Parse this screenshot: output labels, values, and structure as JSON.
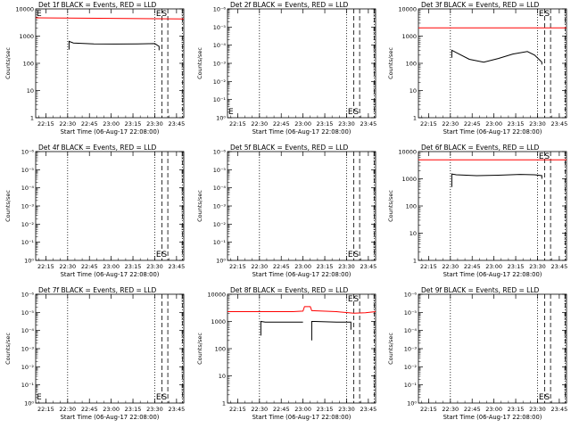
{
  "page": {
    "background": "#ffffff",
    "axis_color": "#000000",
    "events_color": "#000000",
    "lld_color": "#ff0000"
  },
  "chart_data": [
    {
      "type": "line",
      "title": "Det 1f BLACK = Events, RED = LLD",
      "xlabel": "Start Time (06-Aug-17 22:08:00)",
      "ylabel": "Counts/sec",
      "scale": "log",
      "yticks": [
        "1",
        "10",
        "100",
        "1000",
        "10000"
      ],
      "ylim": [
        1,
        10000
      ],
      "xticks": [
        "22:15",
        "22:30",
        "22:45",
        "23:00",
        "23:15",
        "23:30",
        "23:45"
      ],
      "xlim_minutes": [
        0,
        102
      ],
      "markers": {
        "E": 87,
        "S": 91
      },
      "edge_E": true,
      "lld": {
        "x": [
          0,
          102
        ],
        "y": [
          4700,
          4300
        ]
      },
      "events": [
        {
          "x": [
            23,
            23,
            26,
            40,
            55,
            70,
            82,
            85,
            85
          ],
          "y": [
            320,
            640,
            560,
            520,
            510,
            520,
            530,
            420,
            300
          ]
        }
      ]
    },
    {
      "type": "line",
      "title": "Det 2f BLACK = Events, RED = LLD",
      "xlabel": "Start Time (06-Aug-17 22:08:00)",
      "ylabel": "Counts/sec",
      "scale": "log",
      "yticks": [
        "10⁰",
        "10⁻¹",
        "10⁻²",
        "10⁻³",
        "10⁻⁴",
        "10⁻⁵",
        "10⁻⁶"
      ],
      "ylim": [
        1,
        1000000
      ],
      "xticks": [
        "22:15",
        "22:30",
        "22:45",
        "23:00",
        "23:15",
        "23:30",
        "23:45"
      ],
      "xlim_minutes": [
        0,
        102
      ],
      "markers": {
        "E": 87,
        "S": 91
      },
      "edge_E": true,
      "lld": null,
      "events": []
    },
    {
      "type": "line",
      "title": "Det 3f BLACK = Events, RED = LLD",
      "xlabel": "Start Time (06-Aug-17 22:08:00)",
      "ylabel": "Counts/sec",
      "scale": "log",
      "yticks": [
        "1",
        "10",
        "100",
        "1000",
        "10000"
      ],
      "ylim": [
        1,
        10000
      ],
      "xticks": [
        "22:15",
        "22:30",
        "22:45",
        "23:00",
        "23:15",
        "23:30",
        "23:45"
      ],
      "xlim_minutes": [
        0,
        102
      ],
      "markers": {
        "E": 87,
        "S": 91
      },
      "edge_E": false,
      "lld": {
        "x": [
          0,
          102
        ],
        "y": [
          2000,
          2000
        ]
      },
      "events": [
        {
          "x": [
            23,
            23,
            26,
            35,
            45,
            55,
            65,
            75,
            80,
            85,
            85
          ],
          "y": [
            160,
            300,
            250,
            140,
            110,
            150,
            220,
            270,
            200,
            110,
            90
          ]
        }
      ]
    },
    {
      "type": "line",
      "title": "Det 4f BLACK = Events, RED = LLD",
      "xlabel": "Start Time (06-Aug-17 22:08:00)",
      "ylabel": "Counts/sec",
      "scale": "log",
      "yticks": [
        "10⁰",
        "10⁻¹",
        "10⁻²",
        "10⁻³",
        "10⁻⁴",
        "10⁻⁵",
        "10⁻⁶"
      ],
      "ylim": [
        1,
        1000000
      ],
      "xticks": [
        "22:15",
        "22:30",
        "22:45",
        "23:00",
        "23:15",
        "23:30",
        "23:45"
      ],
      "xlim_minutes": [
        0,
        102
      ],
      "markers": {
        "E": 87,
        "S": 91
      },
      "edge_E": false,
      "lld": null,
      "events": []
    },
    {
      "type": "line",
      "title": "Det 5f BLACK = Events, RED = LLD",
      "xlabel": "Start Time (06-Aug-17 22:08:00)",
      "ylabel": "Counts/sec",
      "scale": "log",
      "yticks": [
        "10⁰",
        "10⁻¹",
        "10⁻²",
        "10⁻³",
        "10⁻⁴",
        "10⁻⁵",
        "10⁻⁶"
      ],
      "ylim": [
        1,
        1000000
      ],
      "xticks": [
        "22:15",
        "22:30",
        "22:45",
        "23:00",
        "23:15",
        "23:30",
        "23:45"
      ],
      "xlim_minutes": [
        0,
        102
      ],
      "markers": {
        "E": 87,
        "S": 91
      },
      "edge_E": false,
      "lld": null,
      "events": []
    },
    {
      "type": "line",
      "title": "Det 6f BLACK = Events, RED = LLD",
      "xlabel": "Start Time (06-Aug-17 22:08:00)",
      "ylabel": "Counts/sec",
      "scale": "log",
      "yticks": [
        "1",
        "10",
        "100",
        "1000",
        "10000"
      ],
      "ylim": [
        1,
        10000
      ],
      "xticks": [
        "22:15",
        "22:30",
        "22:45",
        "23:00",
        "23:15",
        "23:30",
        "23:45"
      ],
      "xlim_minutes": [
        0,
        102
      ],
      "markers": {
        "E": 87,
        "S": 91
      },
      "edge_E": false,
      "lld": {
        "x": [
          0,
          102
        ],
        "y": [
          5000,
          5000
        ]
      },
      "events": [
        {
          "x": [
            23,
            23,
            26,
            40,
            55,
            70,
            80,
            85,
            85
          ],
          "y": [
            500,
            1500,
            1400,
            1300,
            1350,
            1450,
            1400,
            1300,
            1000
          ]
        }
      ]
    },
    {
      "type": "line",
      "title": "Det 7f BLACK = Events, RED = LLD",
      "xlabel": "Start Time (06-Aug-17 22:08:00)",
      "ylabel": "Counts/sec",
      "scale": "log",
      "yticks": [
        "10⁰",
        "10⁻¹",
        "10⁻²",
        "10⁻³",
        "10⁻⁴",
        "10⁻⁵",
        "10⁻⁶"
      ],
      "ylim": [
        1,
        1000000
      ],
      "xticks": [
        "22:15",
        "22:30",
        "22:45",
        "23:00",
        "23:15",
        "23:30",
        "23:45"
      ],
      "xlim_minutes": [
        0,
        102
      ],
      "markers": {
        "E": 87,
        "S": 91
      },
      "edge_E": true,
      "lld": null,
      "events": []
    },
    {
      "type": "line",
      "title": "Det 8f BLACK = Events, RED = LLD",
      "xlabel": "Start Time (06-Aug-17 22:08:00)",
      "ylabel": "Counts/sec",
      "scale": "log",
      "yticks": [
        "1",
        "10",
        "100",
        "1000",
        "10000"
      ],
      "ylim": [
        1,
        10000
      ],
      "xticks": [
        "22:15",
        "22:30",
        "22:45",
        "23:00",
        "23:15",
        "23:30",
        "23:45"
      ],
      "xlim_minutes": [
        0,
        102
      ],
      "markers": {
        "E": 87,
        "S": 91
      },
      "edge_E": false,
      "lld": {
        "x": [
          0,
          20,
          45,
          52,
          53,
          57,
          58,
          75,
          87,
          95,
          102
        ],
        "y": [
          2300,
          2300,
          2300,
          2400,
          3500,
          3500,
          2500,
          2300,
          2000,
          2100,
          2300
        ]
      },
      "events": [
        {
          "x": [
            23,
            23,
            26,
            40,
            52
          ],
          "y": [
            300,
            1000,
            950,
            950,
            950
          ]
        },
        {
          "x": [
            58,
            58,
            60,
            75,
            85,
            85
          ],
          "y": [
            200,
            1000,
            1000,
            950,
            950,
            500
          ]
        }
      ]
    },
    {
      "type": "line",
      "title": "Det 9f BLACK = Events, RED = LLD",
      "xlabel": "Start Time (06-Aug-17 22:08:00)",
      "ylabel": "Counts/sec",
      "scale": "log",
      "yticks": [
        "10⁰",
        "10⁻¹",
        "10⁻²",
        "10⁻³",
        "10⁻⁴",
        "10⁻⁵",
        "10⁻⁶"
      ],
      "ylim": [
        1,
        1000000
      ],
      "xticks": [
        "22:15",
        "22:30",
        "22:45",
        "23:00",
        "23:15",
        "23:30",
        "23:45"
      ],
      "xlim_minutes": [
        0,
        102
      ],
      "markers": {
        "E": 87,
        "S": 91
      },
      "edge_E": false,
      "lld": null,
      "events": []
    }
  ]
}
